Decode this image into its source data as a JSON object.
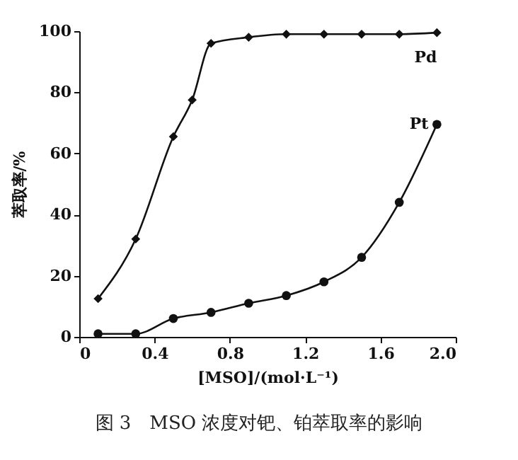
{
  "chart_data": {
    "type": "line",
    "xlabel": "[MSO]/(mol·L⁻¹)",
    "ylabel": "萃取率/%",
    "annotations": [
      "图 3　MSO 浓度对钯、铂萃取率的影响"
    ],
    "xlim": [
      0,
      2.0
    ],
    "xticks": [
      0,
      0.4,
      0.8,
      1.2,
      1.6,
      {
        "value": 2.0,
        "label": "2.0"
      }
    ],
    "ylim": [
      0,
      100
    ],
    "yticks": [
      0,
      20,
      40,
      60,
      80,
      100
    ],
    "grid": false,
    "series": [
      {
        "name": "Pd",
        "color": "#111111",
        "marker": "diamond",
        "x": [
          0.1,
          0.3,
          0.5,
          0.6,
          0.7,
          0.9,
          1.1,
          1.3,
          1.5,
          1.7,
          1.9
        ],
        "values": [
          12.5,
          32,
          65.5,
          77.5,
          96,
          98,
          99,
          99,
          99,
          99,
          99.5
        ]
      },
      {
        "name": "Pt",
        "color": "#111111",
        "marker": "circle",
        "x": [
          0.1,
          0.3,
          0.5,
          0.7,
          0.9,
          1.1,
          1.3,
          1.5,
          1.7,
          1.9
        ],
        "values": [
          1,
          1,
          6,
          8,
          11,
          13.5,
          18,
          26,
          44,
          69.5
        ]
      }
    ]
  }
}
